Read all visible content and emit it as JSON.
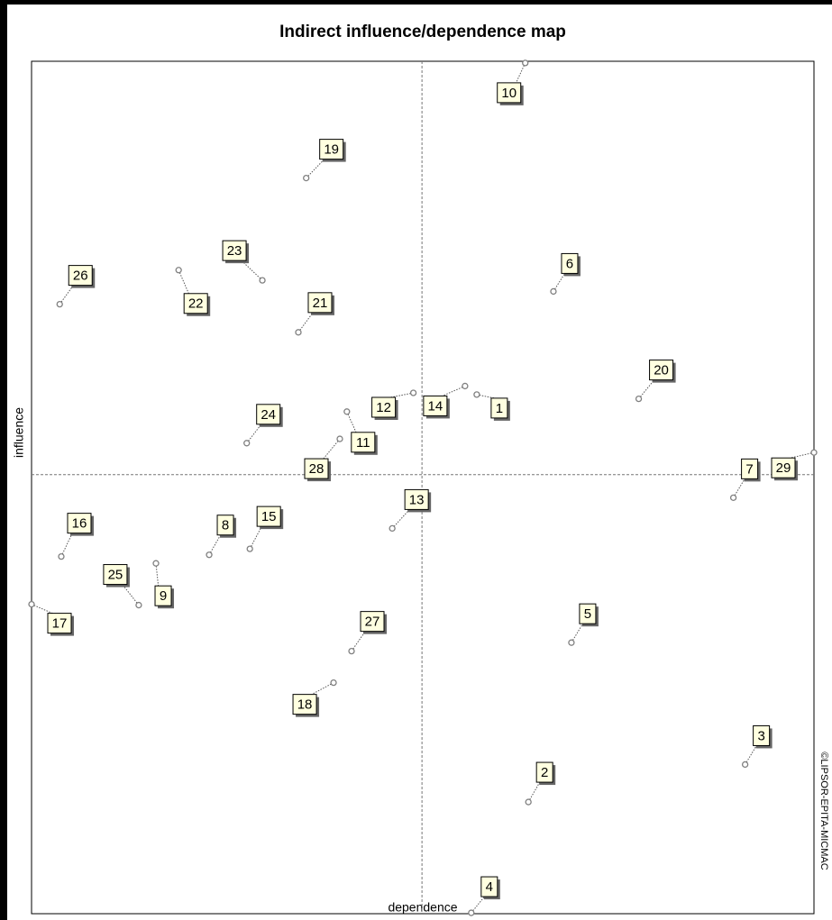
{
  "chart_data": {
    "type": "scatter",
    "title": "Indirect influence/dependence map",
    "x_label": "dependence",
    "y_label": "influence",
    "credit": "©LIPSOR-EPITA-MICMAC",
    "xlim": [
      0,
      100
    ],
    "ylim": [
      0,
      100
    ],
    "xline": 49.9,
    "yline": 51.5,
    "color": "#808080",
    "labels": [
      "10",
      "19",
      "23",
      "22",
      "26",
      "21",
      "6",
      "20",
      "12",
      "14",
      "1",
      "11",
      "24",
      "28",
      "29",
      "7",
      "13",
      "16",
      "8",
      "15",
      "9",
      "25",
      "17",
      "27",
      "5",
      "18",
      "3",
      "2",
      "4"
    ],
    "x": [
      63.1,
      35.1,
      29.5,
      18.8,
      3.6,
      34.1,
      66.7,
      77.6,
      48.8,
      55.4,
      56.9,
      40.3,
      27.5,
      39.4,
      100.0,
      89.7,
      46.1,
      3.8,
      22.7,
      27.9,
      15.9,
      13.7,
      0.0,
      40.9,
      69.0,
      38.6,
      91.2,
      63.5,
      56.2
    ],
    "values": [
      99.8,
      86.3,
      74.3,
      75.5,
      71.5,
      68.2,
      73.0,
      60.4,
      61.1,
      61.9,
      60.9,
      58.9,
      55.2,
      55.7,
      54.1,
      48.8,
      45.2,
      41.9,
      42.1,
      42.8,
      41.1,
      36.2,
      36.3,
      30.8,
      31.8,
      27.1,
      17.5,
      13.1,
      0.1
    ]
  }
}
